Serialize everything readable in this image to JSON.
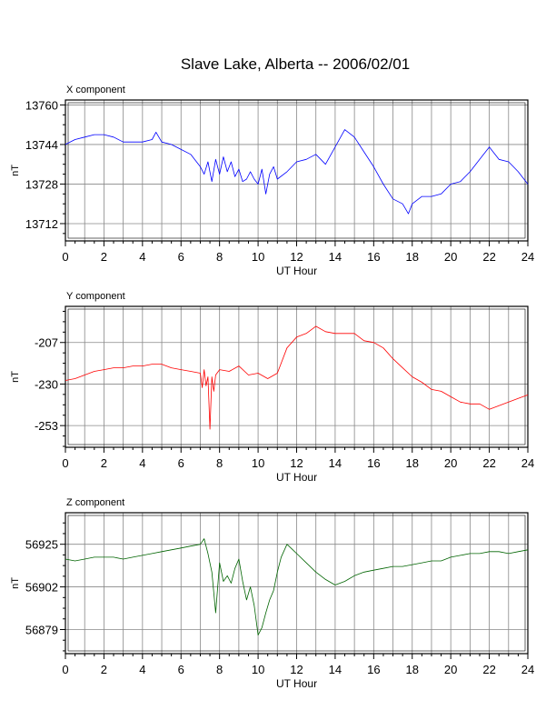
{
  "title": "Slave Lake, Alberta -- 2006/02/01",
  "chart_data": [
    {
      "type": "line",
      "panel_label": "X component",
      "xlabel": "UT Hour",
      "ylabel": "nT",
      "xlim": [
        0,
        24
      ],
      "ylim": [
        13705,
        13762
      ],
      "xticks": [
        0,
        2,
        4,
        6,
        8,
        10,
        12,
        14,
        16,
        18,
        20,
        22,
        24
      ],
      "yticks": [
        13712,
        13728,
        13744,
        13760
      ],
      "grid": true,
      "color": "#0000ff",
      "series": [
        {
          "x": [
            0,
            0.5,
            1,
            1.5,
            2,
            2.5,
            3,
            3.5,
            4,
            4.5,
            4.7,
            5,
            5.5,
            6,
            6.5,
            7,
            7.2,
            7.4,
            7.6,
            7.8,
            8,
            8.2,
            8.4,
            8.6,
            8.8,
            9,
            9.2,
            9.4,
            9.6,
            9.8,
            10,
            10.2,
            10.4,
            10.6,
            10.8,
            11,
            11.5,
            12,
            12.5,
            13,
            13.5,
            14,
            14.5,
            15,
            15.5,
            16,
            16.5,
            17,
            17.5,
            17.8,
            18,
            18.5,
            19,
            19.5,
            20,
            20.5,
            21,
            21.5,
            22,
            22.5,
            23,
            23.5,
            24
          ],
          "y": [
            13744,
            13746,
            13747,
            13748,
            13748,
            13747,
            13745,
            13745,
            13745,
            13746,
            13749,
            13745,
            13744,
            13742,
            13740,
            13735,
            13732,
            13737,
            13729,
            13738,
            13732,
            13739,
            13733,
            13737,
            13731,
            13734,
            13729,
            13730,
            13733,
            13730,
            13728,
            13734,
            13724,
            13732,
            13735,
            13730,
            13733,
            13737,
            13738,
            13740,
            13736,
            13743,
            13750,
            13747,
            13741,
            13735,
            13728,
            13722,
            13720,
            13716,
            13720,
            13723,
            13723,
            13724,
            13728,
            13729,
            13733,
            13738,
            13743,
            13738,
            13737,
            13733,
            13728
          ]
        }
      ]
    },
    {
      "type": "line",
      "panel_label": "Y component",
      "xlabel": "UT Hour",
      "ylabel": "nT",
      "xlim": [
        0,
        24
      ],
      "ylim": [
        -265,
        -187
      ],
      "xticks": [
        0,
        2,
        4,
        6,
        8,
        10,
        12,
        14,
        16,
        18,
        20,
        22,
        24
      ],
      "yticks": [
        -253,
        -230,
        -207
      ],
      "grid": true,
      "color": "#ff0000",
      "series": [
        {
          "x": [
            0,
            0.5,
            1,
            1.5,
            2,
            2.5,
            3,
            3.5,
            4,
            4.5,
            5,
            5.5,
            6,
            6.5,
            7,
            7.1,
            7.2,
            7.3,
            7.4,
            7.5,
            7.6,
            7.7,
            7.8,
            8,
            8.5,
            9,
            9.5,
            10,
            10.5,
            11,
            11.5,
            12,
            12.5,
            13,
            13.5,
            14,
            14.5,
            15,
            15.5,
            16,
            16.5,
            17,
            17.5,
            18,
            18.5,
            19,
            19.5,
            20,
            20.5,
            21,
            21.5,
            22,
            22.5,
            23,
            23.5,
            24
          ],
          "y": [
            -228,
            -227,
            -225,
            -223,
            -222,
            -221,
            -221,
            -220,
            -220,
            -219,
            -219,
            -221,
            -222,
            -223,
            -224,
            -232,
            -222,
            -231,
            -226,
            -255,
            -226,
            -234,
            -225,
            -222,
            -223,
            -220,
            -225,
            -224,
            -227,
            -224,
            -210,
            -204,
            -202,
            -198,
            -201,
            -202,
            -202,
            -202,
            -206,
            -207,
            -210,
            -216,
            -221,
            -226,
            -229,
            -233,
            -234,
            -237,
            -240,
            -241,
            -241,
            -244,
            -242,
            -240,
            -238,
            -236
          ]
        }
      ]
    },
    {
      "type": "line",
      "panel_label": "Z component",
      "xlabel": "UT Hour",
      "ylabel": "nT",
      "xlim": [
        0,
        24
      ],
      "ylim": [
        56866,
        56942
      ],
      "xticks": [
        0,
        2,
        4,
        6,
        8,
        10,
        12,
        14,
        16,
        18,
        20,
        22,
        24
      ],
      "yticks": [
        56879,
        56902,
        56925
      ],
      "grid": true,
      "color": "#006400",
      "series": [
        {
          "x": [
            0,
            0.5,
            1,
            1.5,
            2,
            2.5,
            3,
            3.5,
            4,
            4.5,
            5,
            5.5,
            6,
            6.5,
            7,
            7.2,
            7.4,
            7.6,
            7.8,
            8,
            8.2,
            8.4,
            8.6,
            8.8,
            9,
            9.2,
            9.4,
            9.6,
            9.8,
            10,
            10.2,
            10.4,
            10.6,
            10.8,
            11,
            11.2,
            11.5,
            11.8,
            12,
            12.5,
            13,
            13.5,
            14,
            14.5,
            15,
            15.5,
            16,
            16.5,
            17,
            17.5,
            18,
            18.5,
            19,
            19.5,
            20,
            20.5,
            21,
            21.5,
            22,
            22.5,
            23,
            23.5,
            24
          ],
          "y": [
            56917,
            56916,
            56917,
            56918,
            56918,
            56918,
            56917,
            56918,
            56919,
            56920,
            56921,
            56922,
            56923,
            56924,
            56925,
            56928,
            56920,
            56910,
            56888,
            56915,
            56905,
            56908,
            56904,
            56912,
            56917,
            56905,
            56895,
            56902,
            56892,
            56876,
            56880,
            56888,
            56895,
            56900,
            56910,
            56918,
            56925,
            56922,
            56920,
            56915,
            56910,
            56906,
            56903,
            56905,
            56908,
            56910,
            56911,
            56912,
            56913,
            56913,
            56914,
            56915,
            56916,
            56916,
            56918,
            56919,
            56920,
            56920,
            56921,
            56921,
            56920,
            56921,
            56922
          ]
        }
      ]
    }
  ]
}
